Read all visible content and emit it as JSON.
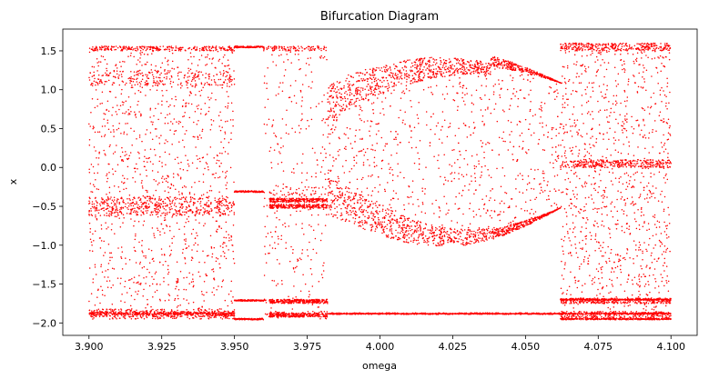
{
  "chart_data": {
    "type": "scatter",
    "title": "Bifurcation Diagram",
    "xlabel": "omega",
    "ylabel": "x",
    "xlim": [
      3.891,
      4.109
    ],
    "ylim": [
      -2.16,
      1.78
    ],
    "grid": false,
    "marker_color": "#ff0000",
    "x_ticks": [
      {
        "value": 3.9,
        "label": "3.900"
      },
      {
        "value": 3.925,
        "label": "3.925"
      },
      {
        "value": 3.95,
        "label": "3.950"
      },
      {
        "value": 3.975,
        "label": "3.975"
      },
      {
        "value": 4.0,
        "label": "4.000"
      },
      {
        "value": 4.025,
        "label": "4.025"
      },
      {
        "value": 4.05,
        "label": "4.050"
      },
      {
        "value": 4.075,
        "label": "4.075"
      },
      {
        "value": 4.1,
        "label": "4.100"
      }
    ],
    "y_ticks": [
      {
        "value": 1.5,
        "label": "1.5"
      },
      {
        "value": 1.0,
        "label": "1.0"
      },
      {
        "value": 0.5,
        "label": "0.5"
      },
      {
        "value": 0.0,
        "label": "0.0"
      },
      {
        "value": -0.5,
        "label": "−0.5"
      },
      {
        "value": -1.0,
        "label": "−1.0"
      },
      {
        "value": -1.5,
        "label": "−1.5"
      },
      {
        "value": -2.0,
        "label": "−2.0"
      }
    ],
    "omega_range": [
      3.9,
      4.1
    ],
    "x_range": [
      -2.0,
      1.6
    ],
    "regions": [
      {
        "omega": [
          3.9,
          3.95
        ],
        "behavior": "chaotic",
        "attractor_bands": [
          [
            1.5,
            1.56
          ],
          [
            -0.6,
            -0.4
          ],
          [
            -1.95,
            -1.82
          ]
        ]
      },
      {
        "omega": [
          3.95,
          3.96
        ],
        "behavior": "periodic",
        "branches": [
          1.55,
          -0.3,
          -1.72,
          -1.95
        ]
      },
      {
        "omega": [
          3.96,
          3.982
        ],
        "behavior": "chaotic-window"
      },
      {
        "omega": [
          3.982,
          4.062
        ],
        "behavior": "period-doubling",
        "branches": [
          1.3,
          -0.9,
          -1.88
        ]
      },
      {
        "omega": [
          4.062,
          4.1
        ],
        "behavior": "chaotic",
        "attractor_bands": [
          [
            1.5,
            1.6
          ],
          [
            0.0,
            0.1
          ],
          [
            -1.75,
            -1.68
          ],
          [
            -1.95,
            -1.85
          ]
        ]
      }
    ]
  }
}
